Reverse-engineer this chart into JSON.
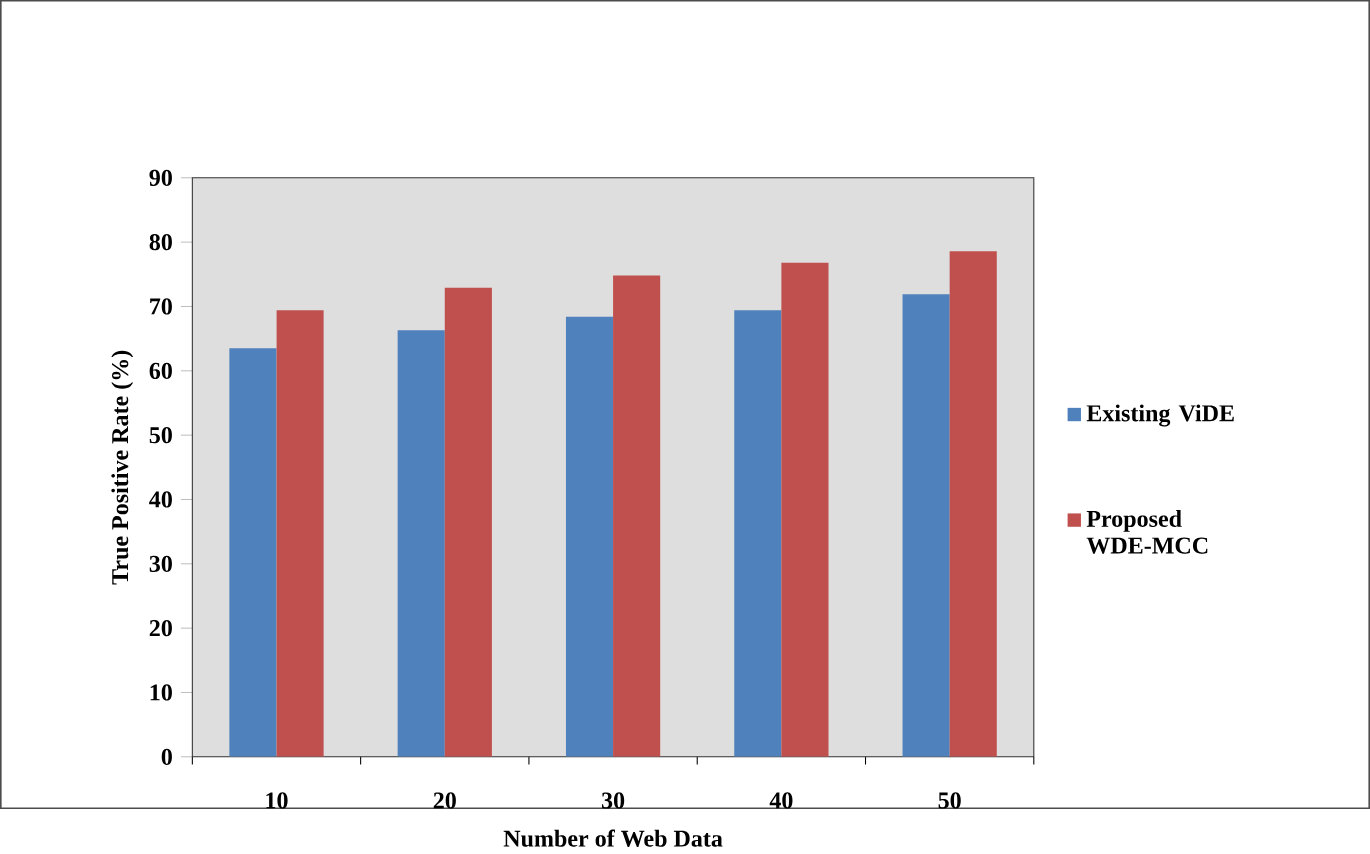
{
  "chart_data": {
    "type": "bar",
    "xlabel": "Number of Web Data",
    "ylabel": "True Positive Rate (%)",
    "categories": [
      "10",
      "20",
      "30",
      "40",
      "50"
    ],
    "series": [
      {
        "name": "Existing ViDE",
        "color": "#4f81bd",
        "values": [
          63.5,
          66.3,
          68.4,
          69.4,
          71.9
        ]
      },
      {
        "name": "Proposed WDE-MCC",
        "color": "#c0504d",
        "values": [
          69.4,
          72.9,
          74.8,
          76.8,
          78.6
        ]
      }
    ],
    "ylim": [
      0,
      90
    ],
    "yticks": [
      0,
      10,
      20,
      30,
      40,
      50,
      60,
      70,
      80,
      90
    ],
    "grid": false,
    "legend": "right"
  }
}
